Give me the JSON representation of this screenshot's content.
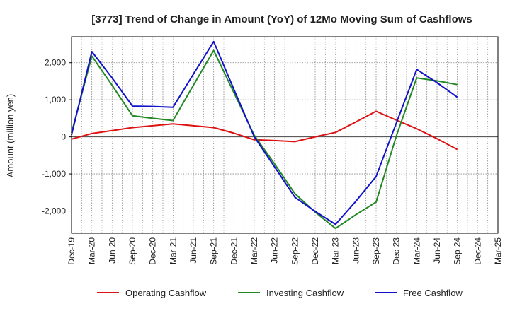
{
  "chart_data": {
    "type": "line",
    "title": "[3773]  Trend of Change in Amount (YoY) of 12Mo Moving Sum of Cashflows",
    "xlabel": "",
    "ylabel": "Amount (million yen)",
    "categories": [
      "Dec-19",
      "Mar-20",
      "Jun-20",
      "Sep-20",
      "Dec-20",
      "Mar-21",
      "Jun-21",
      "Sep-21",
      "Dec-21",
      "Mar-22",
      "Jun-22",
      "Sep-22",
      "Dec-22",
      "Mar-23",
      "Jun-23",
      "Sep-23",
      "Dec-23",
      "Mar-24",
      "Jun-24",
      "Sep-24",
      "Dec-24",
      "Mar-25"
    ],
    "ylim": [
      -2600,
      2700
    ],
    "yticks": [
      -2000,
      -1000,
      0,
      1000,
      2000
    ],
    "ytick_labels": [
      "-2,000",
      "-1,000",
      "0",
      "1,000",
      "2,000"
    ],
    "grid": true,
    "legend_position": "bottom",
    "series": [
      {
        "name": "Operating Cashflow",
        "color": "#dd1111",
        "values": [
          -60,
          90,
          170,
          250,
          300,
          350,
          300,
          250,
          100,
          -80,
          -100,
          -130,
          0,
          120,
          400,
          690,
          450,
          220,
          -50,
          -340,
          null,
          null
        ]
      },
      {
        "name": "Investing Cashflow",
        "color": "#228822",
        "values": [
          110,
          2180,
          1390,
          570,
          500,
          440,
          1390,
          2330,
          1190,
          40,
          -730,
          -1530,
          -2030,
          -2470,
          -2100,
          -1760,
          30,
          1590,
          1510,
          1410,
          null,
          null
        ]
      },
      {
        "name": "Free Cashflow",
        "color": "#1111cc",
        "values": [
          50,
          2300,
          1590,
          830,
          820,
          800,
          1690,
          2570,
          1280,
          0,
          -810,
          -1630,
          -2010,
          -2360,
          -1740,
          -1070,
          380,
          1820,
          1460,
          1070,
          null,
          null
        ]
      }
    ]
  }
}
